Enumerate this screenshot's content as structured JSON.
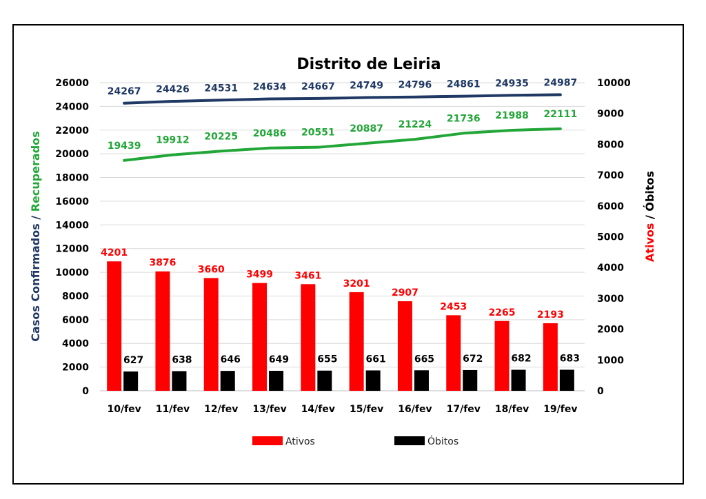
{
  "colors": {
    "confirmados": "#1f3864",
    "recuperados": "#22a638",
    "ativos": "#ff0000",
    "obitos": "#000000"
  },
  "chart_data": {
    "type": "bar",
    "title": "Distrito de Leiria",
    "categories": [
      "10/fev",
      "11/fev",
      "12/fev",
      "13/fev",
      "14/fev",
      "15/fev",
      "16/fev",
      "17/fev",
      "18/fev",
      "19/fev"
    ],
    "left_axis": {
      "label_part1": "Casos Confirmados",
      "separator": " / ",
      "label_part2": "Recuperados",
      "range": [
        0,
        26000
      ],
      "ticks": [
        "0",
        "2000",
        "4000",
        "6000",
        "8000",
        "10000",
        "12000",
        "14000",
        "16000",
        "18000",
        "20000",
        "22000",
        "24000",
        "26000"
      ]
    },
    "right_axis": {
      "label_part1": "Ativos",
      "separator": " / ",
      "label_part2": "Óbitos",
      "range": [
        0,
        10000
      ],
      "ticks": [
        "0",
        "1000",
        "2000",
        "3000",
        "4000",
        "5000",
        "6000",
        "7000",
        "8000",
        "9000",
        "10000"
      ]
    },
    "grid": true,
    "legend_position": "bottom",
    "series": [
      {
        "name": "Casos Confirmados",
        "type": "line",
        "axis": "left",
        "values": [
          24267,
          24426,
          24531,
          24634,
          24667,
          24749,
          24796,
          24861,
          24935,
          24987
        ]
      },
      {
        "name": "Recuperados",
        "type": "line",
        "axis": "left",
        "values": [
          19439,
          19912,
          20225,
          20486,
          20551,
          20887,
          21224,
          21736,
          21988,
          22111
        ]
      },
      {
        "name": "Ativos",
        "type": "bar",
        "axis": "right",
        "values": [
          4201,
          3876,
          3660,
          3499,
          3461,
          3201,
          2907,
          2453,
          2265,
          2193
        ]
      },
      {
        "name": "Óbitos",
        "type": "bar",
        "axis": "right",
        "values": [
          627,
          638,
          646,
          649,
          655,
          661,
          665,
          672,
          682,
          683
        ]
      }
    ],
    "legend": [
      "Ativos",
      "Óbitos"
    ]
  }
}
